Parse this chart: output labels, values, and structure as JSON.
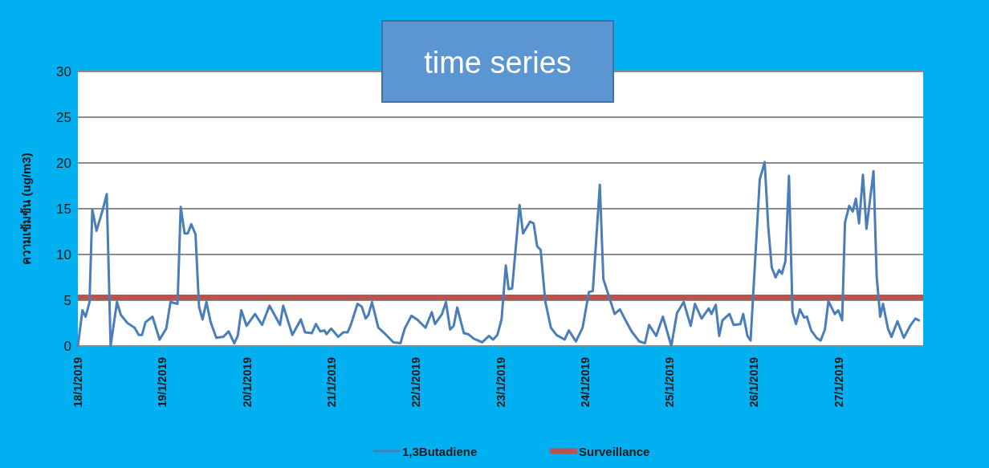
{
  "chart_data": {
    "type": "line",
    "title": "time series",
    "ylabel": "ความเข้มข้น (ug/m3)",
    "x": [
      "2019-01-18T00:00",
      "2019-01-18T01:18",
      "2019-01-18T02:12",
      "2019-01-18T03:18",
      "2019-01-18T04:06",
      "2019-01-18T05:18",
      "2019-01-18T07:00",
      "2019-01-18T08:12",
      "2019-01-18T09:18",
      "2019-01-18T11:06",
      "2019-01-18T12:12",
      "2019-01-18T14:06",
      "2019-01-18T16:06",
      "2019-01-18T17:18",
      "2019-01-18T18:12",
      "2019-01-18T19:12",
      "2019-01-18T21:12",
      "2019-01-18T23:12",
      "2019-01-19T01:06",
      "2019-01-19T02:18",
      "2019-01-19T04:18",
      "2019-01-19T05:12",
      "2019-01-19T06:18",
      "2019-01-19T07:12",
      "2019-01-19T08:12",
      "2019-01-19T09:24",
      "2019-01-19T10:24",
      "2019-01-19T11:24",
      "2019-01-19T12:30",
      "2019-01-19T13:42",
      "2019-01-19T15:18",
      "2019-01-19T17:18",
      "2019-01-19T18:48",
      "2019-01-19T20:24",
      "2019-01-19T21:24",
      "2019-01-19T22:24",
      "2019-01-19T23:54",
      "2019-01-20T02:18",
      "2019-01-20T04:18",
      "2019-01-20T06:24",
      "2019-01-20T09:24",
      "2019-01-20T10:18",
      "2019-01-20T12:54",
      "2019-01-20T15:18",
      "2019-01-20T16:30",
      "2019-01-20T18:24",
      "2019-01-20T19:36",
      "2019-01-20T20:48",
      "2019-01-20T22:00",
      "2019-01-20T22:36",
      "2019-01-20T23:54",
      "2019-01-21T01:54",
      "2019-01-21T03:24",
      "2019-01-21T04:36",
      "2019-01-21T05:24",
      "2019-01-21T07:24",
      "2019-01-21T08:36",
      "2019-01-21T09:42",
      "2019-01-21T10:30",
      "2019-01-21T11:30",
      "2019-01-21T13:18",
      "2019-01-21T15:18",
      "2019-01-21T17:36",
      "2019-01-21T19:36",
      "2019-01-21T20:48",
      "2019-01-21T22:42",
      "2019-01-22T00:18",
      "2019-01-22T02:42",
      "2019-01-22T04:30",
      "2019-01-22T05:24",
      "2019-01-22T07:24",
      "2019-01-22T08:30",
      "2019-01-22T09:42",
      "2019-01-22T10:42",
      "2019-01-22T11:42",
      "2019-01-22T13:36",
      "2019-01-22T14:48",
      "2019-01-22T16:24",
      "2019-01-22T18:48",
      "2019-01-22T20:42",
      "2019-01-22T21:54",
      "2019-01-22T23:06",
      "2019-01-23T00:18",
      "2019-01-23T01:30",
      "2019-01-23T02:18",
      "2019-01-23T03:18",
      "2019-01-23T05:24",
      "2019-01-23T06:24",
      "2019-01-23T08:24",
      "2019-01-23T09:24",
      "2019-01-23T10:24",
      "2019-01-23T11:24",
      "2019-01-23T12:42",
      "2019-01-23T14:18",
      "2019-01-23T15:54",
      "2019-01-23T18:12",
      "2019-01-23T19:24",
      "2019-01-23T21:24",
      "2019-01-23T23:18",
      "2019-01-24T01:06",
      "2019-01-24T02:12",
      "2019-01-24T04:12",
      "2019-01-24T05:12",
      "2019-01-24T08:24",
      "2019-01-24T09:54",
      "2019-01-24T11:30",
      "2019-01-24T13:12",
      "2019-01-24T15:24",
      "2019-01-24T17:00",
      "2019-01-24T18:12",
      "2019-01-24T20:12",
      "2019-01-24T22:06",
      "2019-01-25T00:30",
      "2019-01-25T02:06",
      "2019-01-25T04:00",
      "2019-01-25T06:00",
      "2019-01-25T07:12",
      "2019-01-25T09:06",
      "2019-01-25T11:06",
      "2019-01-25T11:54",
      "2019-01-25T13:06",
      "2019-01-25T14:06",
      "2019-01-25T15:00",
      "2019-01-25T17:00",
      "2019-01-25T18:12",
      "2019-01-25T20:06",
      "2019-01-25T20:54",
      "2019-01-25T22:06",
      "2019-01-25T23:00",
      "2019-01-26T01:36",
      "2019-01-26T03:00",
      "2019-01-26T04:00",
      "2019-01-26T05:00",
      "2019-01-26T06:06",
      "2019-01-26T07:06",
      "2019-01-26T07:54",
      "2019-01-26T08:54",
      "2019-01-26T09:54",
      "2019-01-26T10:54",
      "2019-01-26T11:54",
      "2019-01-26T13:00",
      "2019-01-26T14:12",
      "2019-01-26T15:00",
      "2019-01-26T16:12",
      "2019-01-26T17:42",
      "2019-01-26T18:54",
      "2019-01-26T20:06",
      "2019-01-26T21:06",
      "2019-01-26T22:54",
      "2019-01-26T23:54",
      "2019-01-27T01:00",
      "2019-01-27T01:48",
      "2019-01-27T03:00",
      "2019-01-27T04:00",
      "2019-01-27T04:54",
      "2019-01-27T05:48",
      "2019-01-27T06:54",
      "2019-01-27T07:54",
      "2019-01-27T09:54",
      "2019-01-27T10:48",
      "2019-01-27T11:48",
      "2019-01-27T12:36",
      "2019-01-27T14:00",
      "2019-01-27T15:00",
      "2019-01-27T16:42",
      "2019-01-27T18:30",
      "2019-01-27T20:18",
      "2019-01-27T21:48",
      "2019-01-27T22:48"
    ],
    "series": [
      {
        "name": "1,3Butadiene",
        "color": "#4a7ebb",
        "values": [
          0,
          3.9,
          3.2,
          4.8,
          14.9,
          12.6,
          14.8,
          16.6,
          0,
          4.8,
          3.4,
          2.5,
          2.0,
          1.2,
          1.2,
          2.6,
          3.2,
          0.7,
          1.9,
          4.8,
          4.6,
          15.2,
          12.3,
          12.3,
          13.3,
          12.2,
          4.3,
          2.9,
          4.8,
          2.6,
          0.9,
          1.0,
          1.6,
          0.3,
          1.1,
          3.9,
          2.2,
          3.5,
          2.3,
          4.4,
          2.3,
          4.4,
          1.2,
          2.9,
          1.5,
          1.4,
          2.4,
          1.6,
          1.7,
          1.3,
          1.9,
          1.0,
          1.5,
          1.5,
          2.2,
          4.6,
          4.3,
          3.0,
          3.4,
          4.8,
          2.0,
          1.3,
          0.4,
          0.3,
          1.9,
          3.3,
          2.9,
          2.0,
          3.7,
          2.4,
          3.5,
          4.8,
          1.8,
          2.2,
          4.2,
          1.4,
          1.3,
          0.8,
          0.4,
          1.1,
          0.7,
          1.2,
          2.9,
          8.8,
          6.2,
          6.3,
          15.4,
          12.3,
          13.6,
          13.4,
          10.9,
          10.5,
          4.9,
          2.0,
          1.2,
          0.7,
          1.7,
          0.5,
          2.0,
          5.9,
          6.0,
          17.6,
          7.3,
          3.5,
          4.0,
          2.8,
          1.6,
          0.5,
          0.3,
          2.3,
          1.1,
          3.2,
          0.0,
          3.6,
          4.8,
          2.2,
          4.6,
          3.0,
          4.1,
          3.5,
          4.5,
          1.1,
          2.8,
          3.5,
          2.3,
          2.4,
          3.5,
          1.1,
          0.6,
          18.2,
          20.1,
          13.1,
          8.6,
          7.5,
          8.3,
          7.9,
          9.3,
          18.6,
          3.7,
          2.4,
          4.0,
          3.1,
          3.2,
          1.7,
          0.9,
          0.6,
          1.8,
          4.9,
          3.5,
          3.9,
          2.8,
          13.5,
          15.3,
          14.7,
          16.1,
          13.4,
          18.7,
          12.8,
          19.1,
          7.6,
          3.2,
          4.6,
          1.9,
          1.0,
          2.7,
          0.9,
          2.2,
          3.0,
          2.8
        ]
      }
    ],
    "ref_lines": [
      {
        "axis": "y",
        "value": 5.3,
        "label": "Surveillance",
        "color": "#c0504d"
      }
    ],
    "xlim": [
      "2019-01-18",
      "2019-01-28"
    ],
    "xticks": [
      {
        "value": "2019-01-18",
        "label": "18/1/2019"
      },
      {
        "value": "2019-01-19",
        "label": "19/1/2019"
      },
      {
        "value": "2019-01-20",
        "label": "20/1/2019"
      },
      {
        "value": "2019-01-21",
        "label": "21/1/2019"
      },
      {
        "value": "2019-01-22",
        "label": "22/1/2019"
      },
      {
        "value": "2019-01-23",
        "label": "23/1/2019"
      },
      {
        "value": "2019-01-24",
        "label": "24/1/2019"
      },
      {
        "value": "2019-01-25",
        "label": "25/1/2019"
      },
      {
        "value": "2019-01-26",
        "label": "26/1/2019"
      },
      {
        "value": "2019-01-27",
        "label": "27/1/2019"
      }
    ],
    "ylim": [
      0,
      30
    ],
    "yticks": [
      0,
      5,
      10,
      15,
      20,
      25,
      30
    ],
    "grid": "y",
    "legend": "bottom",
    "marker": "none",
    "line_style": "solid"
  }
}
